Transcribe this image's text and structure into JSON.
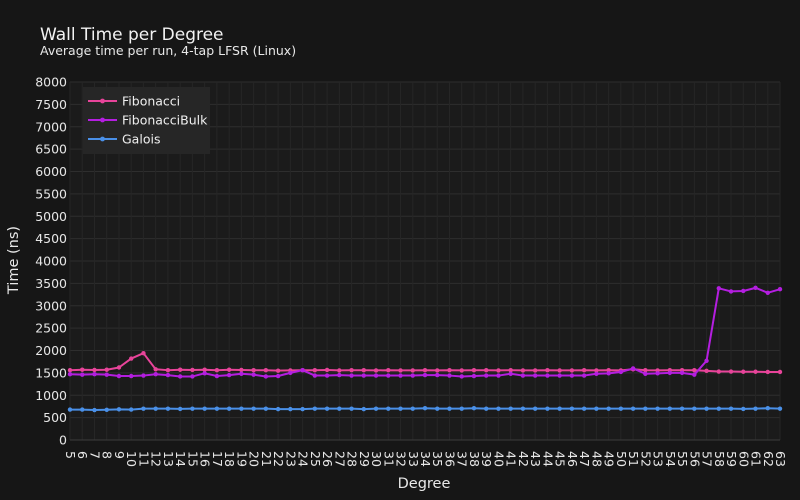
{
  "chart_data": {
    "type": "line",
    "title": "Wall Time per Degree",
    "subtitle": "Average time per run, 4-tap LFSR (Linux)",
    "xlabel": "Degree",
    "ylabel": "Time (ns)",
    "ylim": [
      0,
      8000
    ],
    "yticks": [
      0,
      500,
      1000,
      1500,
      2000,
      2500,
      3000,
      3500,
      4000,
      4500,
      5000,
      5500,
      6000,
      6500,
      7000,
      7500,
      8000
    ],
    "grid": true,
    "legend_position": "top-left",
    "x": [
      5,
      6,
      7,
      8,
      9,
      10,
      11,
      12,
      13,
      14,
      15,
      16,
      17,
      18,
      19,
      20,
      21,
      22,
      23,
      24,
      25,
      26,
      27,
      28,
      29,
      30,
      31,
      32,
      33,
      34,
      35,
      36,
      37,
      38,
      39,
      40,
      41,
      42,
      43,
      44,
      45,
      46,
      47,
      48,
      49,
      50,
      51,
      52,
      53,
      54,
      55,
      56,
      57,
      58,
      59,
      60,
      61,
      62,
      63
    ],
    "series": [
      {
        "name": "Fibonacci",
        "color": "#e8449a",
        "values": [
          1560,
          1570,
          1565,
          1570,
          1620,
          1820,
          1940,
          1580,
          1560,
          1570,
          1565,
          1570,
          1560,
          1570,
          1565,
          1560,
          1560,
          1550,
          1555,
          1560,
          1560,
          1565,
          1555,
          1560,
          1560,
          1555,
          1560,
          1555,
          1555,
          1560,
          1555,
          1560,
          1555,
          1560,
          1560,
          1555,
          1560,
          1555,
          1555,
          1560,
          1555,
          1555,
          1560,
          1555,
          1560,
          1555,
          1580,
          1560,
          1555,
          1560,
          1560,
          1560,
          1545,
          1530,
          1530,
          1525,
          1525,
          1520,
          1520
        ]
      },
      {
        "name": "FibonacciBulk",
        "color": "#b41ee0",
        "values": [
          1470,
          1460,
          1470,
          1460,
          1430,
          1430,
          1440,
          1470,
          1450,
          1420,
          1420,
          1490,
          1430,
          1450,
          1480,
          1460,
          1420,
          1430,
          1500,
          1560,
          1440,
          1440,
          1450,
          1440,
          1440,
          1440,
          1440,
          1440,
          1440,
          1450,
          1450,
          1440,
          1420,
          1430,
          1440,
          1440,
          1480,
          1440,
          1440,
          1440,
          1440,
          1440,
          1440,
          1480,
          1490,
          1520,
          1600,
          1480,
          1490,
          1500,
          1500,
          1460,
          1770,
          3390,
          3320,
          3330,
          3400,
          3290,
          3370
        ]
      },
      {
        "name": "Galois",
        "color": "#4a90e8",
        "values": [
          680,
          680,
          670,
          675,
          685,
          680,
          700,
          700,
          700,
          695,
          700,
          700,
          700,
          700,
          700,
          700,
          700,
          690,
          690,
          690,
          700,
          700,
          700,
          700,
          690,
          700,
          700,
          700,
          700,
          710,
          700,
          700,
          700,
          710,
          700,
          700,
          700,
          700,
          700,
          700,
          700,
          700,
          700,
          700,
          700,
          700,
          700,
          700,
          700,
          700,
          700,
          700,
          700,
          700,
          700,
          695,
          700,
          710,
          700
        ]
      }
    ]
  }
}
